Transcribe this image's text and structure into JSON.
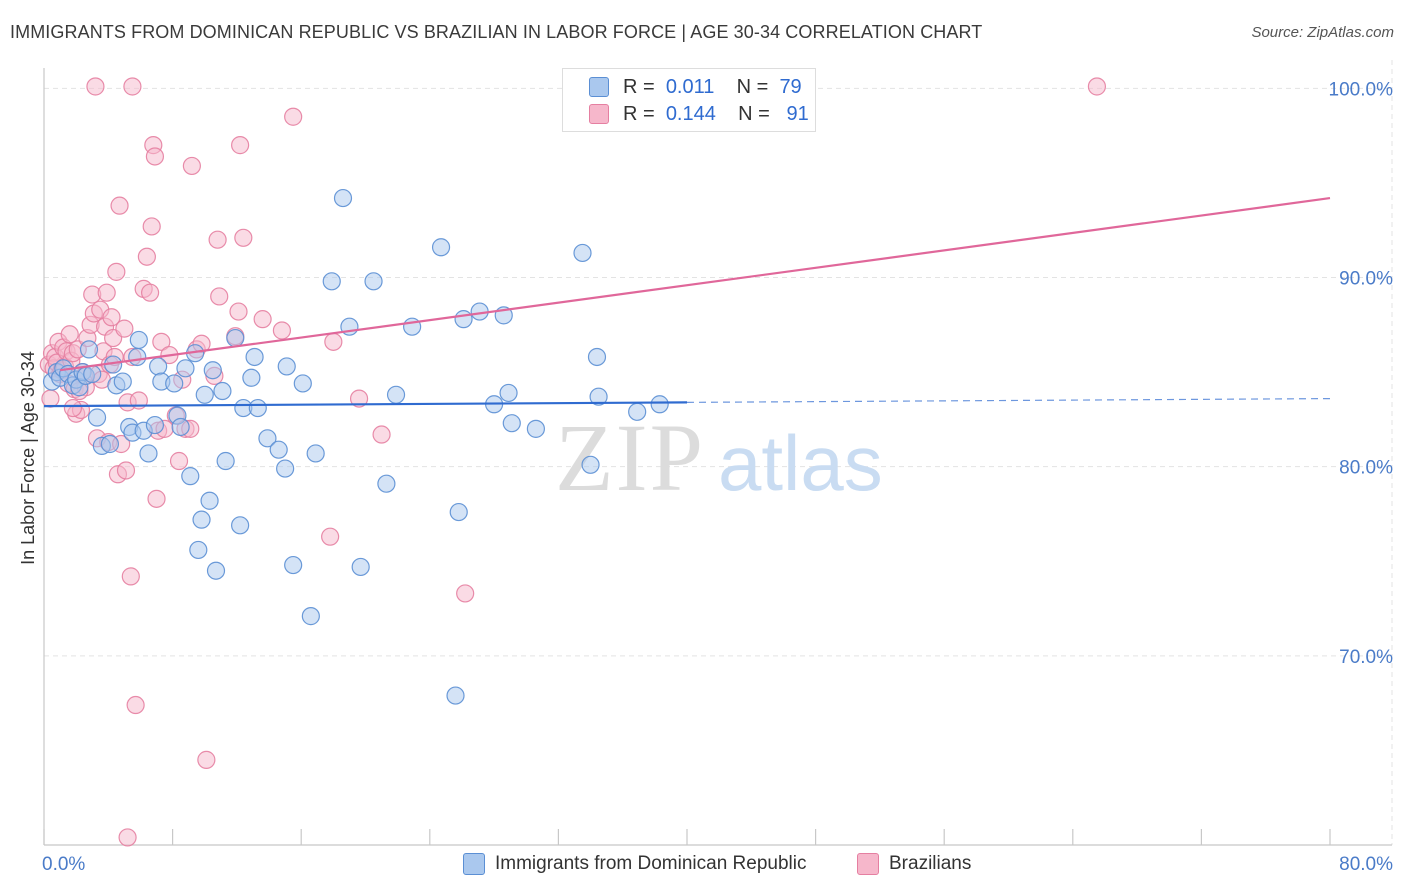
{
  "title": "IMMIGRANTS FROM DOMINICAN REPUBLIC VS BRAZILIAN IN LABOR FORCE | AGE 30-34 CORRELATION CHART",
  "source": "Source: ZipAtlas.com",
  "watermark": {
    "zip": "ZIP",
    "atlas": "atlas"
  },
  "colors": {
    "blue_fill": "#aac8ee",
    "blue_stroke": "#5b8fd4",
    "blue_line": "#2f6bd0",
    "pink_fill": "#f6b7cb",
    "pink_stroke": "#e57fa1",
    "pink_line": "#e0679a",
    "tick_text": "#4a7bc8",
    "grid": "#e3e3e3"
  },
  "legend": {
    "rows": [
      {
        "r_label": "R =",
        "r_value": "0.011",
        "n_label": "N =",
        "n_value": "79"
      },
      {
        "r_label": "R =",
        "r_value": "0.144",
        "n_label": "N =",
        "n_value": "91"
      }
    ]
  },
  "bottom_legend": {
    "series1": "Immigrants from Dominican Republic",
    "series2": "Brazilians"
  },
  "chart_data": {
    "type": "scatter",
    "title": "IMMIGRANTS FROM DOMINICAN REPUBLIC VS BRAZILIAN IN LABOR FORCE | AGE 30-34 CORRELATION CHART",
    "xlabel": "",
    "ylabel": "In Labor Force | Age 30-34",
    "xlim": [
      0,
      80
    ],
    "ylim": [
      60,
      101.5
    ],
    "x_tick_labels": [
      "0.0%",
      "80.0%"
    ],
    "y_ticks": [
      70,
      80,
      90,
      100
    ],
    "y_tick_labels": [
      "70.0%",
      "80.0%",
      "90.0%",
      "100.0%"
    ],
    "series": [
      {
        "name": "Immigrants from Dominican Republic",
        "R": 0.011,
        "N": 79,
        "trend": {
          "x0": 0,
          "y0": 83.2,
          "x1": 40,
          "y1": 83.4,
          "dash_to_x": 80,
          "dash_y1": 83.6
        },
        "points": [
          [
            0.5,
            84.5
          ],
          [
            0.8,
            85
          ],
          [
            1.0,
            84.7
          ],
          [
            1.2,
            85.2
          ],
          [
            1.5,
            84.9
          ],
          [
            1.8,
            84.3
          ],
          [
            2.0,
            84.6
          ],
          [
            2.2,
            84.2
          ],
          [
            2.4,
            85.0
          ],
          [
            2.6,
            84.8
          ],
          [
            2.8,
            86.2
          ],
          [
            3.0,
            84.9
          ],
          [
            3.3,
            82.6
          ],
          [
            3.6,
            81.1
          ],
          [
            4.1,
            81.2
          ],
          [
            4.3,
            85.4
          ],
          [
            4.5,
            84.3
          ],
          [
            4.9,
            84.5
          ],
          [
            5.3,
            82.1
          ],
          [
            5.5,
            81.8
          ],
          [
            5.8,
            85.8
          ],
          [
            5.9,
            86.7
          ],
          [
            6.2,
            81.9
          ],
          [
            6.5,
            80.7
          ],
          [
            6.9,
            82.2
          ],
          [
            7.1,
            85.3
          ],
          [
            7.3,
            84.5
          ],
          [
            8.1,
            84.4
          ],
          [
            8.3,
            82.7
          ],
          [
            8.5,
            82.1
          ],
          [
            8.8,
            85.2
          ],
          [
            9.1,
            79.5
          ],
          [
            9.4,
            86.0
          ],
          [
            9.6,
            75.6
          ],
          [
            9.8,
            77.2
          ],
          [
            10.0,
            83.8
          ],
          [
            10.3,
            78.2
          ],
          [
            10.5,
            85.1
          ],
          [
            10.7,
            74.5
          ],
          [
            11.1,
            84.0
          ],
          [
            11.3,
            80.3
          ],
          [
            11.9,
            86.8
          ],
          [
            12.2,
            76.9
          ],
          [
            12.4,
            83.1
          ],
          [
            12.9,
            84.7
          ],
          [
            13.1,
            85.8
          ],
          [
            13.3,
            83.1
          ],
          [
            13.9,
            81.5
          ],
          [
            14.6,
            80.9
          ],
          [
            15.0,
            79.9
          ],
          [
            15.1,
            85.3
          ],
          [
            15.5,
            74.8
          ],
          [
            16.1,
            84.4
          ],
          [
            16.6,
            72.1
          ],
          [
            16.9,
            80.7
          ],
          [
            17.9,
            89.8
          ],
          [
            18.6,
            94.2
          ],
          [
            19.0,
            87.4
          ],
          [
            19.7,
            74.7
          ],
          [
            20.5,
            89.8
          ],
          [
            21.3,
            79.1
          ],
          [
            21.9,
            83.8
          ],
          [
            22.9,
            87.4
          ],
          [
            24.7,
            91.6
          ],
          [
            25.8,
            77.6
          ],
          [
            25.6,
            67.9
          ],
          [
            26.1,
            87.8
          ],
          [
            27.1,
            88.2
          ],
          [
            28.0,
            83.3
          ],
          [
            28.6,
            88.0
          ],
          [
            28.9,
            83.9
          ],
          [
            29.1,
            82.3
          ],
          [
            30.6,
            82.0
          ],
          [
            33.5,
            91.3
          ],
          [
            34.0,
            80.1
          ],
          [
            34.4,
            85.8
          ],
          [
            34.5,
            83.7
          ],
          [
            36.9,
            82.9
          ],
          [
            38.3,
            83.3
          ]
        ]
      },
      {
        "name": "Brazilians",
        "R": 0.144,
        "N": 91,
        "trend": {
          "x0": 1,
          "y0": 85.1,
          "x1": 80,
          "y1": 94.2
        },
        "points": [
          [
            0.3,
            85.4
          ],
          [
            0.5,
            86.0
          ],
          [
            0.6,
            85.2
          ],
          [
            0.7,
            85.8
          ],
          [
            0.8,
            85.5
          ],
          [
            0.9,
            86.6
          ],
          [
            1.0,
            84.9
          ],
          [
            1.1,
            85.1
          ],
          [
            1.2,
            86.3
          ],
          [
            1.3,
            85.3
          ],
          [
            1.4,
            86.1
          ],
          [
            1.5,
            84.4
          ],
          [
            1.6,
            87.0
          ],
          [
            1.7,
            85.6
          ],
          [
            1.8,
            86.0
          ],
          [
            1.9,
            84.1
          ],
          [
            2.0,
            82.8
          ],
          [
            2.1,
            86.2
          ],
          [
            2.3,
            83.0
          ],
          [
            2.4,
            85.0
          ],
          [
            2.5,
            84.8
          ],
          [
            2.6,
            84.2
          ],
          [
            2.7,
            86.8
          ],
          [
            2.9,
            87.5
          ],
          [
            3.0,
            89.1
          ],
          [
            3.1,
            88.1
          ],
          [
            3.3,
            81.5
          ],
          [
            3.4,
            84.9
          ],
          [
            3.5,
            88.3
          ],
          [
            3.6,
            84.6
          ],
          [
            3.7,
            86.1
          ],
          [
            3.8,
            87.4
          ],
          [
            3.9,
            89.2
          ],
          [
            4.0,
            81.3
          ],
          [
            4.1,
            85.4
          ],
          [
            4.2,
            87.9
          ],
          [
            4.3,
            86.8
          ],
          [
            4.4,
            85.8
          ],
          [
            4.5,
            90.3
          ],
          [
            4.6,
            79.6
          ],
          [
            4.7,
            93.8
          ],
          [
            4.8,
            81.2
          ],
          [
            5.0,
            87.3
          ],
          [
            5.1,
            79.8
          ],
          [
            5.2,
            83.4
          ],
          [
            5.4,
            74.2
          ],
          [
            5.5,
            85.8
          ],
          [
            5.7,
            67.4
          ],
          [
            5.9,
            83.5
          ],
          [
            6.2,
            89.4
          ],
          [
            6.4,
            91.1
          ],
          [
            6.6,
            89.2
          ],
          [
            6.7,
            92.7
          ],
          [
            6.8,
            97.0
          ],
          [
            6.9,
            96.4
          ],
          [
            7.0,
            78.3
          ],
          [
            7.1,
            81.9
          ],
          [
            7.3,
            86.6
          ],
          [
            7.5,
            82.0
          ],
          [
            7.8,
            85.9
          ],
          [
            8.2,
            82.7
          ],
          [
            8.4,
            80.3
          ],
          [
            8.6,
            84.6
          ],
          [
            8.8,
            82.0
          ],
          [
            9.1,
            82.0
          ],
          [
            9.2,
            95.9
          ],
          [
            9.5,
            86.2
          ],
          [
            9.8,
            86.5
          ],
          [
            10.1,
            64.5
          ],
          [
            10.6,
            84.8
          ],
          [
            10.8,
            92.0
          ],
          [
            10.9,
            89.0
          ],
          [
            11.9,
            86.9
          ],
          [
            12.1,
            88.2
          ],
          [
            12.2,
            97.0
          ],
          [
            12.4,
            92.1
          ],
          [
            13.6,
            87.8
          ],
          [
            14.8,
            87.2
          ],
          [
            15.5,
            98.5
          ],
          [
            17.8,
            76.3
          ],
          [
            18.0,
            86.6
          ],
          [
            19.6,
            83.6
          ],
          [
            21.0,
            81.7
          ],
          [
            26.2,
            73.3
          ],
          [
            3.2,
            100.1
          ],
          [
            5.5,
            100.1
          ],
          [
            65.5,
            100.1
          ],
          [
            5.2,
            60.4
          ],
          [
            2.2,
            84.0
          ],
          [
            1.8,
            83.1
          ],
          [
            0.4,
            83.6
          ]
        ]
      }
    ]
  }
}
